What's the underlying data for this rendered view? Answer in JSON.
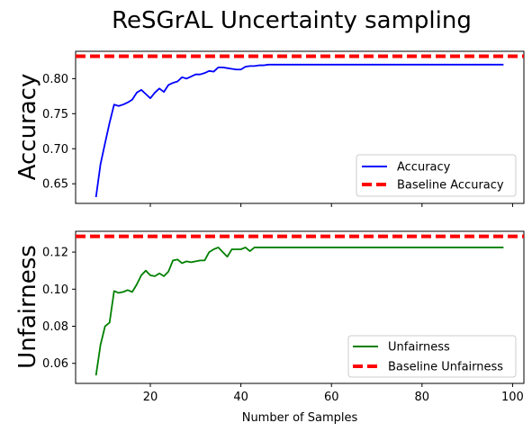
{
  "title": "ReSGrAL Uncertainty sampling",
  "xlabel": "Number of Samples",
  "chart_data": [
    {
      "type": "line",
      "ylabel": "Accuracy",
      "xlim": [
        3.5,
        102.5
      ],
      "ylim": [
        0.622,
        0.839
      ],
      "xticks": [
        20,
        40,
        60,
        80,
        100
      ],
      "xticklabels_visible": false,
      "yticks": [
        0.65,
        0.7,
        0.75,
        0.8
      ],
      "ytick_labels": [
        "0.65",
        "0.70",
        "0.75",
        "0.80"
      ],
      "grid": false,
      "legend": "lower-right",
      "series": [
        {
          "name": "Accuracy",
          "color": "#0000ff",
          "style": "solid",
          "x": [
            8,
            9,
            10,
            11,
            12,
            13,
            14,
            15,
            16,
            17,
            18,
            19,
            20,
            21,
            22,
            23,
            24,
            25,
            26,
            27,
            28,
            29,
            30,
            31,
            32,
            33,
            34,
            35,
            36,
            37,
            38,
            39,
            40,
            41,
            42,
            43,
            44,
            45,
            46,
            47,
            48,
            49,
            50,
            55,
            60,
            65,
            70,
            75,
            80,
            85,
            90,
            95,
            98
          ],
          "y": [
            0.631,
            0.678,
            0.708,
            0.737,
            0.763,
            0.761,
            0.763,
            0.766,
            0.77,
            0.78,
            0.784,
            0.778,
            0.772,
            0.78,
            0.786,
            0.781,
            0.791,
            0.794,
            0.796,
            0.802,
            0.8,
            0.803,
            0.806,
            0.806,
            0.808,
            0.811,
            0.81,
            0.816,
            0.816,
            0.815,
            0.814,
            0.813,
            0.813,
            0.817,
            0.818,
            0.818,
            0.819,
            0.819,
            0.82,
            0.82,
            0.82,
            0.82,
            0.82,
            0.82,
            0.82,
            0.82,
            0.82,
            0.82,
            0.82,
            0.82,
            0.82,
            0.82,
            0.82
          ]
        },
        {
          "name": "Baseline Accuracy",
          "color": "#ff0000",
          "style": "dashed",
          "hline": 0.832
        }
      ]
    },
    {
      "type": "line",
      "ylabel": "Unfairness",
      "xlim": [
        3.5,
        102.5
      ],
      "ylim": [
        0.0492,
        0.1312
      ],
      "xticks": [
        20,
        40,
        60,
        80,
        100
      ],
      "xtick_labels": [
        "20",
        "40",
        "60",
        "80",
        "100"
      ],
      "yticks": [
        0.06,
        0.08,
        0.1,
        0.12
      ],
      "ytick_labels": [
        "0.06",
        "0.08",
        "0.10",
        "0.12"
      ],
      "grid": false,
      "legend": "lower-right",
      "series": [
        {
          "name": "Unfairness",
          "color": "#008000",
          "style": "solid",
          "x": [
            8,
            9,
            10,
            11,
            12,
            13,
            14,
            15,
            16,
            17,
            18,
            19,
            20,
            21,
            22,
            23,
            24,
            25,
            26,
            27,
            28,
            29,
            30,
            31,
            32,
            33,
            34,
            35,
            36,
            37,
            38,
            39,
            40,
            41,
            42,
            43,
            44,
            45,
            46,
            47,
            48,
            49,
            50,
            55,
            60,
            65,
            70,
            75,
            80,
            85,
            90,
            95,
            98
          ],
          "y": [
            0.0535,
            0.07,
            0.08,
            0.082,
            0.099,
            0.098,
            0.0985,
            0.0995,
            0.0985,
            0.1025,
            0.1075,
            0.11,
            0.1075,
            0.107,
            0.1085,
            0.107,
            0.1095,
            0.1155,
            0.116,
            0.114,
            0.115,
            0.1145,
            0.115,
            0.1155,
            0.1155,
            0.12,
            0.1215,
            0.1225,
            0.12,
            0.1175,
            0.1215,
            0.1215,
            0.1215,
            0.1225,
            0.1205,
            0.1225,
            0.1225,
            0.1225,
            0.1225,
            0.1225,
            0.1225,
            0.1225,
            0.1225,
            0.1225,
            0.1225,
            0.1225,
            0.1225,
            0.1225,
            0.1225,
            0.1225,
            0.1225,
            0.1225,
            0.1225
          ]
        },
        {
          "name": "Baseline Unfairness",
          "color": "#ff0000",
          "style": "dashed",
          "hline": 0.1285
        }
      ]
    }
  ]
}
